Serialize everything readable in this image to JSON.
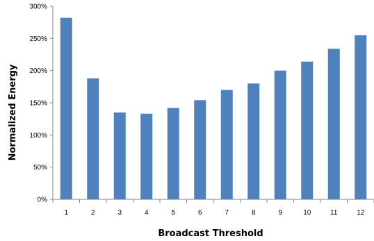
{
  "chart_data": {
    "type": "bar",
    "categories": [
      "1",
      "2",
      "3",
      "4",
      "5",
      "6",
      "7",
      "8",
      "9",
      "10",
      "11",
      "12"
    ],
    "values": [
      282,
      188,
      135,
      133,
      142,
      154,
      170,
      180,
      200,
      214,
      234,
      255
    ],
    "unit": "%",
    "title": "",
    "xlabel": "Broadcast Threshold",
    "ylabel": "Normalized Energy",
    "ylim": [
      0,
      300
    ],
    "yticks": [
      "0%",
      "50%",
      "100%",
      "150%",
      "200%",
      "250%",
      "300%"
    ],
    "grid": false,
    "legend": "none",
    "bar_color": "#4F81BD",
    "axis_color": "#868686"
  }
}
